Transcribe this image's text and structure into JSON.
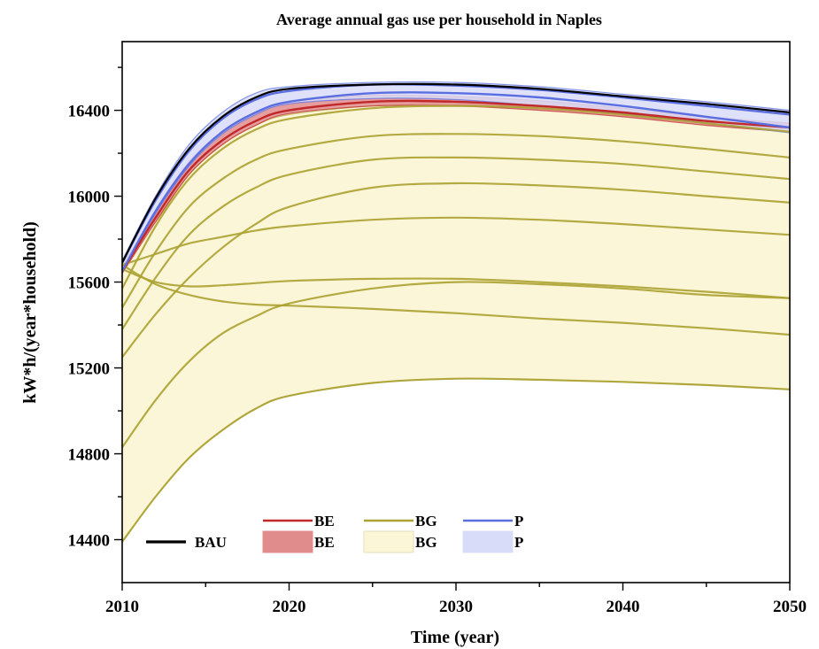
{
  "chart_data": {
    "type": "line",
    "title": "Average annual gas use per household  in Naples",
    "xlabel": "Time (year)",
    "ylabel": "kW*h/(year*household)",
    "xlim": [
      2010,
      2050
    ],
    "ylim": [
      14200,
      16720
    ],
    "xticks": [
      2010,
      2020,
      2030,
      2040,
      2050
    ],
    "yticks": [
      14400,
      14800,
      15200,
      15600,
      16000,
      16400
    ],
    "colors": {
      "BAU": "#000000",
      "BE_line": "#c0282a",
      "BE_band": "#e08c8c",
      "BG_line": "#aba232",
      "BG_band": "#fcf6d8",
      "P_line": "#5a6ee0",
      "P_band": "#d8dcf8"
    },
    "series": [
      {
        "name": "BG",
        "group": "BG",
        "x": [
          2010,
          2012,
          2014,
          2016,
          2018,
          2020,
          2025,
          2030,
          2035,
          2040,
          2045,
          2050
        ],
        "values": [
          14390,
          14600,
          14780,
          14910,
          15010,
          15070,
          15130,
          15150,
          15145,
          15135,
          15120,
          15100
        ]
      },
      {
        "name": "BG",
        "group": "BG",
        "x": [
          2010,
          2012,
          2014,
          2016,
          2018,
          2020,
          2025,
          2030,
          2035,
          2040,
          2045,
          2050
        ],
        "values": [
          14830,
          15050,
          15230,
          15360,
          15440,
          15500,
          15570,
          15600,
          15590,
          15570,
          15540,
          15525
        ]
      },
      {
        "name": "BG",
        "group": "BG",
        "x": [
          2010,
          2012,
          2014,
          2016,
          2018,
          2020,
          2025,
          2030,
          2035,
          2040,
          2045,
          2050
        ],
        "values": [
          15680,
          15590,
          15540,
          15510,
          15495,
          15490,
          15475,
          15455,
          15430,
          15410,
          15385,
          15355
        ]
      },
      {
        "name": "BG",
        "group": "BG",
        "x": [
          2010,
          2012,
          2014,
          2016,
          2018,
          2020,
          2025,
          2030,
          2035,
          2040,
          2045,
          2050
        ],
        "values": [
          15660,
          15600,
          15580,
          15585,
          15595,
          15605,
          15615,
          15615,
          15600,
          15580,
          15555,
          15525
        ]
      },
      {
        "name": "BG",
        "group": "BG",
        "x": [
          2010,
          2012,
          2014,
          2016,
          2018,
          2020,
          2025,
          2030,
          2035,
          2040,
          2045,
          2050
        ],
        "values": [
          15680,
          15730,
          15780,
          15810,
          15840,
          15860,
          15890,
          15900,
          15890,
          15870,
          15845,
          15820
        ]
      },
      {
        "name": "BG",
        "group": "BG",
        "x": [
          2010,
          2012,
          2014,
          2016,
          2018,
          2020,
          2025,
          2030,
          2035,
          2040,
          2045,
          2050
        ],
        "values": [
          15250,
          15450,
          15620,
          15760,
          15870,
          15950,
          16040,
          16060,
          16050,
          16030,
          16000,
          15970
        ]
      },
      {
        "name": "BG",
        "group": "BG",
        "x": [
          2010,
          2012,
          2014,
          2016,
          2018,
          2020,
          2025,
          2030,
          2035,
          2040,
          2045,
          2050
        ],
        "values": [
          15380,
          15620,
          15820,
          15950,
          16040,
          16100,
          16170,
          16180,
          16170,
          16150,
          16115,
          16080
        ]
      },
      {
        "name": "BG",
        "group": "BG",
        "x": [
          2010,
          2012,
          2014,
          2016,
          2018,
          2020,
          2025,
          2030,
          2035,
          2040,
          2045,
          2050
        ],
        "values": [
          15480,
          15740,
          15950,
          16080,
          16170,
          16220,
          16280,
          16290,
          16280,
          16255,
          16220,
          16180
        ]
      },
      {
        "name": "BG",
        "group": "BG",
        "x": [
          2010,
          2012,
          2014,
          2016,
          2018,
          2020,
          2025,
          2030,
          2035,
          2040,
          2045,
          2050
        ],
        "values": [
          15570,
          15860,
          16080,
          16220,
          16310,
          16360,
          16410,
          16420,
          16410,
          16380,
          16340,
          16300
        ]
      },
      {
        "name": "BE",
        "group": "BE",
        "x": [
          2010,
          2012,
          2014,
          2016,
          2018,
          2020,
          2025,
          2030,
          2035,
          2040,
          2045,
          2050
        ],
        "values": [
          15650,
          15900,
          16120,
          16260,
          16350,
          16400,
          16440,
          16440,
          16420,
          16390,
          16350,
          16320
        ]
      },
      {
        "name": "P",
        "group": "P",
        "x": [
          2010,
          2012,
          2014,
          2016,
          2018,
          2020,
          2025,
          2030,
          2035,
          2040,
          2045,
          2050
        ],
        "values": [
          15650,
          15930,
          16150,
          16300,
          16390,
          16440,
          16480,
          16480,
          16460,
          16420,
          16370,
          16320
        ]
      },
      {
        "name": "P",
        "group": "P",
        "x": [
          2010,
          2012,
          2014,
          2016,
          2018,
          2020,
          2025,
          2030,
          2035,
          2040,
          2045,
          2050
        ],
        "values": [
          15690,
          15980,
          16210,
          16360,
          16450,
          16490,
          16520,
          16515,
          16495,
          16460,
          16420,
          16380
        ]
      },
      {
        "name": "BAU",
        "group": "BAU",
        "x": [
          2010,
          2012,
          2014,
          2016,
          2018,
          2020,
          2025,
          2030,
          2035,
          2040,
          2045,
          2050
        ],
        "values": [
          15690,
          15990,
          16220,
          16370,
          16460,
          16500,
          16520,
          16520,
          16500,
          16465,
          16430,
          16390
        ]
      }
    ],
    "bands": [
      {
        "name": "BG",
        "x": [
          2010,
          2012,
          2014,
          2016,
          2018,
          2020,
          2025,
          2030,
          2035,
          2040,
          2045,
          2050
        ],
        "lower": [
          14390,
          14600,
          14780,
          14910,
          15010,
          15070,
          15130,
          15150,
          15145,
          15135,
          15120,
          15100
        ],
        "upper": [
          15690,
          15880,
          16100,
          16240,
          16330,
          16380,
          16420,
          16425,
          16415,
          16385,
          16345,
          16305
        ]
      },
      {
        "name": "BE",
        "x": [
          2010,
          2012,
          2014,
          2016,
          2018,
          2020,
          2025,
          2030,
          2035,
          2040,
          2045,
          2050
        ],
        "lower": [
          15640,
          15880,
          16100,
          16240,
          16330,
          16385,
          16420,
          16420,
          16400,
          16370,
          16330,
          16300
        ],
        "upper": [
          15670,
          15930,
          16160,
          16300,
          16390,
          16440,
          16470,
          16465,
          16445,
          16410,
          16370,
          16340
        ]
      },
      {
        "name": "P",
        "x": [
          2010,
          2012,
          2014,
          2016,
          2018,
          2020,
          2025,
          2030,
          2035,
          2040,
          2045,
          2050
        ],
        "lower": [
          15650,
          15920,
          16140,
          16290,
          16380,
          16430,
          16455,
          16450,
          16420,
          16385,
          16340,
          16295
        ],
        "upper": [
          15700,
          16000,
          16240,
          16390,
          16480,
          16510,
          16530,
          16530,
          16510,
          16475,
          16440,
          16400
        ]
      }
    ],
    "legend": {
      "placement": "bottom",
      "entries": [
        {
          "label": "BAU",
          "kind": "line",
          "color": "#000000"
        },
        {
          "label": "BE",
          "kind": "line",
          "color": "#c0282a"
        },
        {
          "label": "BE",
          "kind": "band",
          "color": "#e08c8c"
        },
        {
          "label": "BG",
          "kind": "line",
          "color": "#aba232"
        },
        {
          "label": "BG",
          "kind": "band",
          "color": "#fcf6d8"
        },
        {
          "label": "P",
          "kind": "line",
          "color": "#5a6ee0"
        },
        {
          "label": "P",
          "kind": "band",
          "color": "#d8dcf8"
        }
      ]
    },
    "grid": false
  }
}
